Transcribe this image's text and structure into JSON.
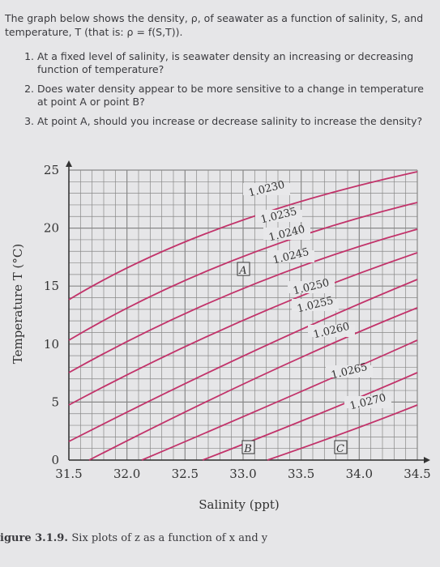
{
  "intro": "The graph below shows the density, ρ, of seawater as a function of salinity, S, and temperature, T (that is: ρ = f(S,T)).",
  "questions": [
    "At a fixed level of salinity, is seawater density an increasing or decreasing function of temperature?",
    "Does water density appear to be more sensitive to a change in temperature at point A or point B?",
    "At point A, should you increase or decrease salinity to increase the density?"
  ],
  "figure": {
    "ylabel": "Temperature T (°C)",
    "xlabel": "Salinity (ppt)",
    "xticks": [
      "31.5",
      "32.0",
      "32.5",
      "33.0",
      "33.5",
      "34.0",
      "34.5"
    ],
    "yticks": [
      "0",
      "5",
      "10",
      "15",
      "20",
      "25"
    ],
    "contours": [
      "1.0230",
      "1.0235",
      "1.0240",
      "1.0245",
      "1.0250",
      "1.0255",
      "1.0260",
      "1.0265",
      "1.0270"
    ],
    "points": [
      "A",
      "B",
      "C"
    ]
  },
  "caption": {
    "label": "igure 3.1.9.",
    "text": "Six plots of z as a function of x and y"
  }
}
